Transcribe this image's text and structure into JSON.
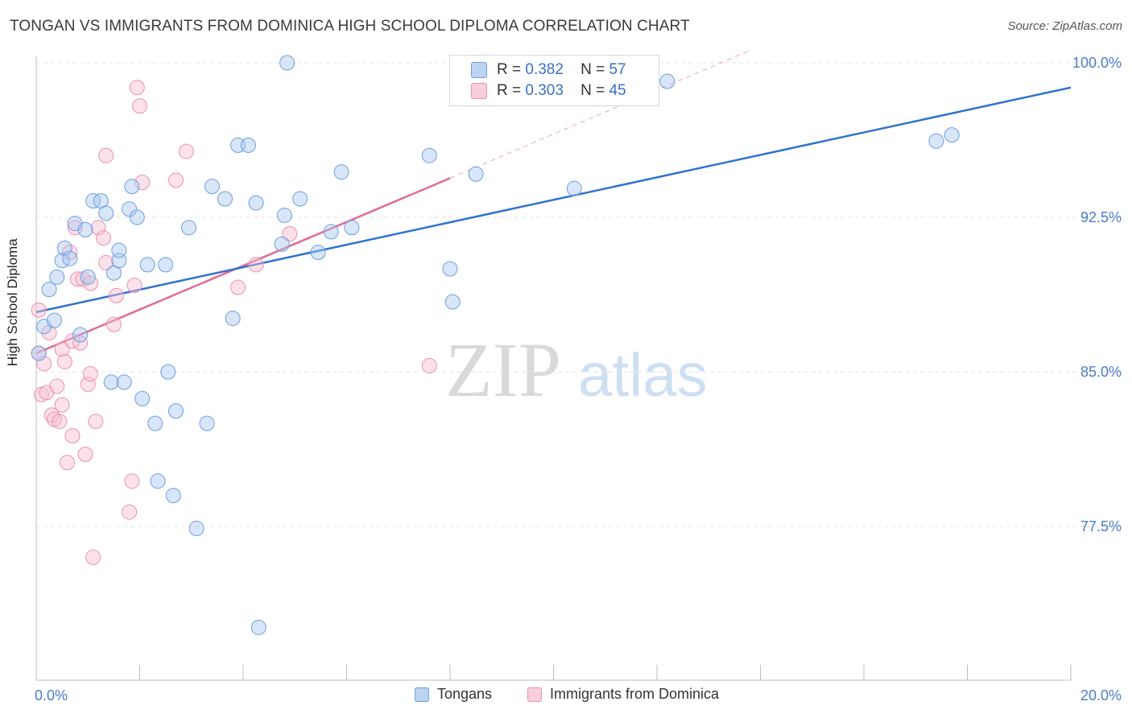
{
  "title": "TONGAN VS IMMIGRANTS FROM DOMINICA HIGH SCHOOL DIPLOMA CORRELATION CHART",
  "source": "Source: ZipAtlas.com",
  "watermark": {
    "zip": "ZIP",
    "atlas": "atlas"
  },
  "legend": {
    "rows": [
      {
        "r_label": "R =",
        "r_value": "0.382",
        "n_label": "N =",
        "n_value": "57"
      },
      {
        "r_label": "R =",
        "r_value": "0.303",
        "n_label": "N =",
        "n_value": "45"
      }
    ]
  },
  "bottom_legend": {
    "tongans": "Tongans",
    "dominica": "Immigrants from Dominica"
  },
  "colors": {
    "blue_fill": "#a9c8ef",
    "blue_stroke": "#6d9ee0",
    "blue_line": "#2f72d0",
    "pink_fill": "#f6bfd0",
    "pink_stroke": "#ec90ae",
    "pink_line": "#e06a93",
    "tick_label": "#4a7cc9"
  },
  "chart_data": {
    "type": "scatter",
    "title": "TONGAN VS IMMIGRANTS FROM DOMINICA HIGH SCHOOL DIPLOMA CORRELATION CHART",
    "xlabel": "",
    "ylabel": "High School Diploma",
    "xlim": [
      0,
      20
    ],
    "ylim": [
      70.5,
      101.5
    ],
    "x_tick_labels": [
      "0.0%",
      "20.0%"
    ],
    "y_ticks": [
      77.5,
      85.0,
      92.5,
      100.0
    ],
    "y_tick_labels": [
      "77.5%",
      "85.0%",
      "92.5%",
      "100.0%"
    ],
    "grid": "horizontal dashed",
    "legend_position": "top-center",
    "series": [
      {
        "name": "Tongans",
        "r": 0.382,
        "n": 57,
        "trend": {
          "x": [
            0,
            20
          ],
          "y": [
            87.9,
            98.8
          ]
        },
        "points": [
          [
            0.05,
            85.9
          ],
          [
            0.15,
            87.2
          ],
          [
            0.25,
            89.0
          ],
          [
            0.35,
            87.5
          ],
          [
            0.4,
            89.6
          ],
          [
            0.5,
            90.4
          ],
          [
            0.55,
            91.0
          ],
          [
            0.65,
            90.5
          ],
          [
            0.75,
            92.2
          ],
          [
            0.85,
            86.8
          ],
          [
            0.95,
            91.9
          ],
          [
            1.0,
            89.6
          ],
          [
            1.1,
            93.3
          ],
          [
            1.25,
            93.3
          ],
          [
            1.35,
            92.7
          ],
          [
            1.45,
            84.5
          ],
          [
            1.5,
            89.8
          ],
          [
            1.6,
            90.4
          ],
          [
            1.6,
            90.9
          ],
          [
            1.7,
            84.5
          ],
          [
            1.8,
            92.9
          ],
          [
            1.85,
            94.0
          ],
          [
            1.95,
            92.5
          ],
          [
            2.05,
            83.7
          ],
          [
            2.15,
            90.2
          ],
          [
            2.3,
            82.5
          ],
          [
            2.35,
            79.7
          ],
          [
            2.5,
            90.2
          ],
          [
            2.55,
            85.0
          ],
          [
            2.65,
            79.0
          ],
          [
            2.7,
            83.1
          ],
          [
            2.95,
            92.0
          ],
          [
            3.1,
            77.4
          ],
          [
            3.3,
            82.5
          ],
          [
            3.4,
            94.0
          ],
          [
            3.65,
            93.4
          ],
          [
            3.8,
            87.6
          ],
          [
            3.9,
            96.0
          ],
          [
            4.1,
            96.0
          ],
          [
            4.25,
            93.2
          ],
          [
            4.3,
            72.6
          ],
          [
            4.75,
            91.2
          ],
          [
            4.8,
            92.6
          ],
          [
            4.85,
            100.0
          ],
          [
            5.1,
            93.4
          ],
          [
            5.45,
            90.8
          ],
          [
            5.7,
            91.8
          ],
          [
            5.9,
            94.7
          ],
          [
            6.1,
            92.0
          ],
          [
            7.6,
            95.5
          ],
          [
            8.0,
            90.0
          ],
          [
            8.05,
            88.4
          ],
          [
            8.5,
            94.6
          ],
          [
            10.4,
            93.9
          ],
          [
            12.2,
            99.1
          ],
          [
            17.4,
            96.2
          ],
          [
            17.7,
            96.5
          ]
        ]
      },
      {
        "name": "Immigrants from Dominica",
        "r": 0.303,
        "n": 45,
        "trend": {
          "x": [
            0,
            8.0
          ],
          "y": [
            85.9,
            94.4
          ]
        },
        "trend_extension": {
          "x": [
            8.0,
            13.8
          ],
          "y": [
            94.4,
            100.6
          ]
        },
        "points": [
          [
            0.05,
            88.0
          ],
          [
            0.05,
            85.9
          ],
          [
            0.1,
            83.9
          ],
          [
            0.15,
            85.4
          ],
          [
            0.2,
            84.0
          ],
          [
            0.25,
            86.9
          ],
          [
            0.3,
            82.9
          ],
          [
            0.35,
            82.7
          ],
          [
            0.4,
            84.3
          ],
          [
            0.45,
            82.6
          ],
          [
            0.5,
            86.1
          ],
          [
            0.5,
            83.4
          ],
          [
            0.55,
            85.5
          ],
          [
            0.6,
            80.6
          ],
          [
            0.65,
            90.8
          ],
          [
            0.7,
            86.5
          ],
          [
            0.7,
            81.9
          ],
          [
            0.75,
            92.0
          ],
          [
            0.8,
            89.5
          ],
          [
            0.85,
            86.4
          ],
          [
            0.9,
            89.5
          ],
          [
            0.95,
            81.0
          ],
          [
            1.0,
            84.4
          ],
          [
            1.05,
            89.3
          ],
          [
            1.05,
            84.9
          ],
          [
            1.1,
            76.0
          ],
          [
            1.15,
            82.6
          ],
          [
            1.2,
            92.0
          ],
          [
            1.3,
            91.5
          ],
          [
            1.35,
            90.3
          ],
          [
            1.35,
            95.5
          ],
          [
            1.5,
            87.3
          ],
          [
            1.55,
            88.7
          ],
          [
            1.8,
            78.2
          ],
          [
            1.85,
            79.7
          ],
          [
            1.9,
            89.2
          ],
          [
            1.95,
            98.8
          ],
          [
            2.0,
            97.9
          ],
          [
            2.05,
            94.2
          ],
          [
            2.7,
            94.3
          ],
          [
            2.9,
            95.7
          ],
          [
            3.9,
            89.1
          ],
          [
            4.25,
            90.2
          ],
          [
            4.9,
            91.7
          ],
          [
            7.6,
            85.3
          ]
        ]
      }
    ]
  }
}
